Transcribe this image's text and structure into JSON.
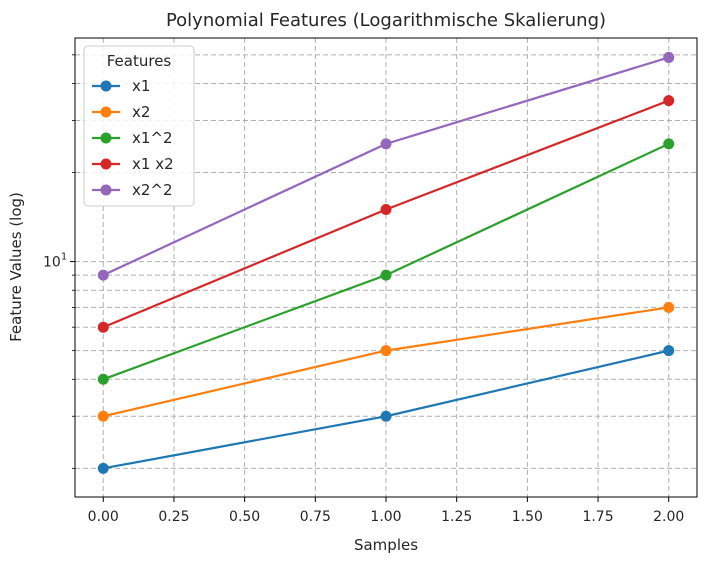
{
  "chart_data": {
    "type": "line",
    "title": "Polynomial Features (Logarithmische Skalierung)",
    "xlabel": "Samples",
    "ylabel": "Feature Values (log)",
    "yscale": "log",
    "xlim": [
      -0.1,
      2.1
    ],
    "ylim": [
      1.6,
      57
    ],
    "grid": true,
    "grid_style": "dashed",
    "legend": {
      "title": "Features",
      "placement": "top-left"
    },
    "x": [
      0,
      1,
      2
    ],
    "x_ticks": [
      0,
      0.25,
      0.5,
      0.75,
      1.0,
      1.25,
      1.5,
      1.75,
      2.0
    ],
    "x_tick_labels": [
      "0.00",
      "0.25",
      "0.50",
      "0.75",
      "1.00",
      "1.25",
      "1.50",
      "1.75",
      "2.00"
    ],
    "y_major_ticks": [
      {
        "value": 10,
        "base": "10",
        "exp": "1"
      }
    ],
    "y_minor_ticks": [
      2,
      3,
      4,
      5,
      6,
      7,
      8,
      9,
      20,
      30,
      40,
      50
    ],
    "series": [
      {
        "name": "x1",
        "color": "#1f77b4",
        "values": [
          2,
          3,
          5
        ]
      },
      {
        "name": "x2",
        "color": "#ff7f0e",
        "values": [
          3,
          5,
          7
        ]
      },
      {
        "name": "x1^2",
        "color": "#2ca02c",
        "values": [
          4,
          9,
          25
        ]
      },
      {
        "name": "x1 x2",
        "color": "#d62728",
        "values": [
          6,
          15,
          35
        ]
      },
      {
        "name": "x2^2",
        "color": "#9467bd",
        "values": [
          9,
          25,
          49
        ]
      }
    ]
  }
}
